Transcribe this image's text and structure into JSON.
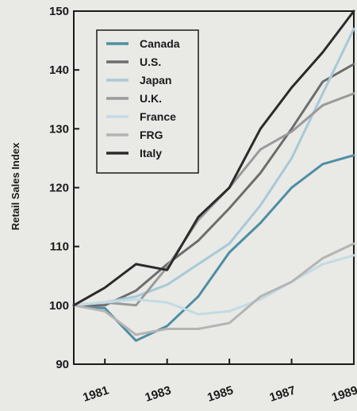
{
  "chart_data": {
    "type": "line",
    "title": "",
    "xlabel": "",
    "ylabel": "Retail Sales Index",
    "x": [
      1980,
      1981,
      1982,
      1983,
      1984,
      1985,
      1986,
      1987,
      1988,
      1989
    ],
    "xticks": [
      1981,
      1983,
      1985,
      1987,
      1989
    ],
    "xtick_labels": [
      "1981",
      "1983",
      "1985",
      "1987",
      "1989"
    ],
    "xlim": [
      1980,
      1989
    ],
    "ylim": [
      90,
      150
    ],
    "yticks": [
      90,
      100,
      110,
      120,
      130,
      140,
      150
    ],
    "ytick_labels": [
      "90",
      "100",
      "110",
      "120",
      "130",
      "140",
      "150"
    ],
    "grid": false,
    "legend_position": "top-left",
    "series": [
      {
        "name": "Canada",
        "color": "#4e8ea3",
        "values": [
          100,
          99.5,
          94,
          96.5,
          101.5,
          109,
          114,
          120,
          124,
          125.5
        ]
      },
      {
        "name": "U.S.",
        "color": "#6d6d6d",
        "values": [
          100,
          100,
          102.5,
          107,
          111,
          116.5,
          122.5,
          130,
          138,
          141
        ]
      },
      {
        "name": "Japan",
        "color": "#a8c9d6",
        "values": [
          100,
          100.5,
          101.5,
          103.5,
          107,
          110.5,
          117,
          125,
          136,
          147
        ]
      },
      {
        "name": "U.K.",
        "color": "#9a9a9a",
        "values": [
          100,
          100.5,
          100,
          106.5,
          114.5,
          120,
          126.5,
          129.5,
          134,
          136
        ]
      },
      {
        "name": "France",
        "color": "#c2dbe4",
        "values": [
          100,
          100.5,
          101,
          100.5,
          98.5,
          99,
          101,
          104,
          107,
          108.5
        ]
      },
      {
        "name": "FRG",
        "color": "#b4b4b4",
        "values": [
          100,
          99,
          95,
          96,
          96,
          97,
          101.5,
          104,
          108,
          110.5
        ]
      },
      {
        "name": "Italy",
        "color": "#2b2b2b",
        "values": [
          100,
          103,
          107,
          106,
          115,
          120,
          130,
          137,
          143,
          150
        ]
      }
    ]
  }
}
